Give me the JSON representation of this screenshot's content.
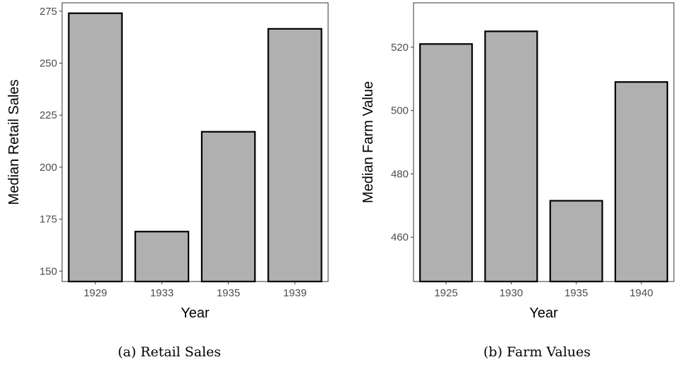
{
  "chart_data": [
    {
      "type": "bar",
      "categories": [
        "1929",
        "1933",
        "1935",
        "1939"
      ],
      "values": [
        274,
        169,
        217,
        266.5
      ],
      "xlabel": "Year",
      "ylabel": "Median Retail Sales",
      "yticks": [
        150,
        175,
        200,
        225,
        250,
        275
      ],
      "ylim": [
        145,
        279
      ],
      "caption": "(a) Retail Sales",
      "bar_color": "#b0b0b0",
      "border_color": "#000000",
      "grid": false
    },
    {
      "type": "bar",
      "categories": [
        "1925",
        "1930",
        "1935",
        "1940"
      ],
      "values": [
        521,
        525,
        471.5,
        509
      ],
      "xlabel": "Year",
      "ylabel": "Median Farm Value",
      "yticks": [
        460,
        480,
        500,
        520
      ],
      "ylim": [
        446,
        534
      ],
      "caption": "(b) Farm Values",
      "bar_color": "#b0b0b0",
      "border_color": "#000000",
      "grid": false
    }
  ]
}
